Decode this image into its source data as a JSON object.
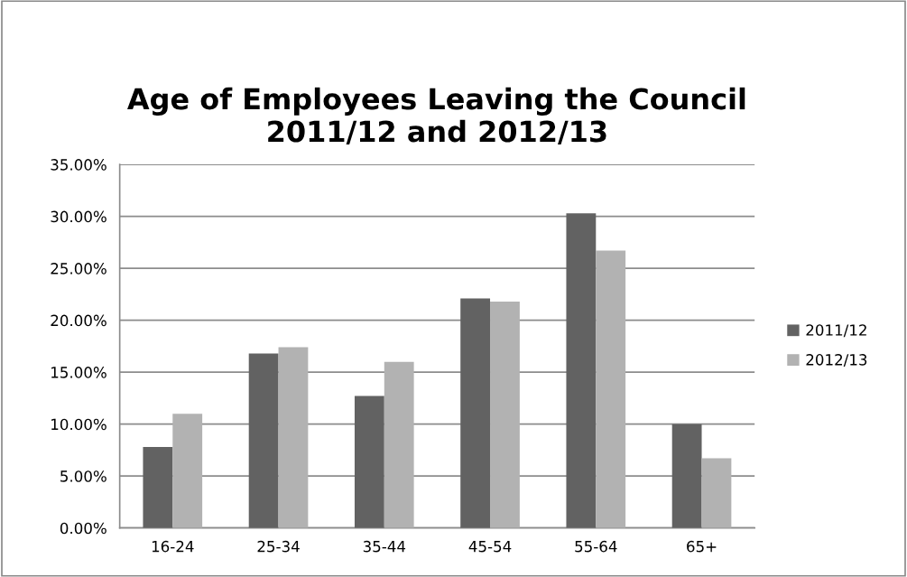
{
  "chart_data": {
    "type": "bar",
    "title": "Age of Employees Leaving the Council\n2011/12 and 2012/13",
    "categories": [
      "16-24",
      "25-34",
      "35-44",
      "45-54",
      "55-64",
      "65+"
    ],
    "series": [
      {
        "name": "2011/12",
        "color": "#626262",
        "values": [
          7.8,
          16.8,
          12.7,
          22.1,
          30.3,
          10.0
        ]
      },
      {
        "name": "2012/13",
        "color": "#b2b2b2",
        "values": [
          11.0,
          17.4,
          16.0,
          21.8,
          26.7,
          6.7
        ]
      }
    ],
    "ylim": [
      0,
      35
    ],
    "yticks": [
      {
        "value": 0,
        "label": "0.00%"
      },
      {
        "value": 5,
        "label": "5.00%"
      },
      {
        "value": 10,
        "label": "10.00%"
      },
      {
        "value": 15,
        "label": "15.00%"
      },
      {
        "value": 20,
        "label": "20.00%"
      },
      {
        "value": 25,
        "label": "25.00%"
      },
      {
        "value": 30,
        "label": "30.00%"
      },
      {
        "value": 35,
        "label": "35.00%"
      }
    ],
    "grid": "y",
    "legend": "right"
  }
}
